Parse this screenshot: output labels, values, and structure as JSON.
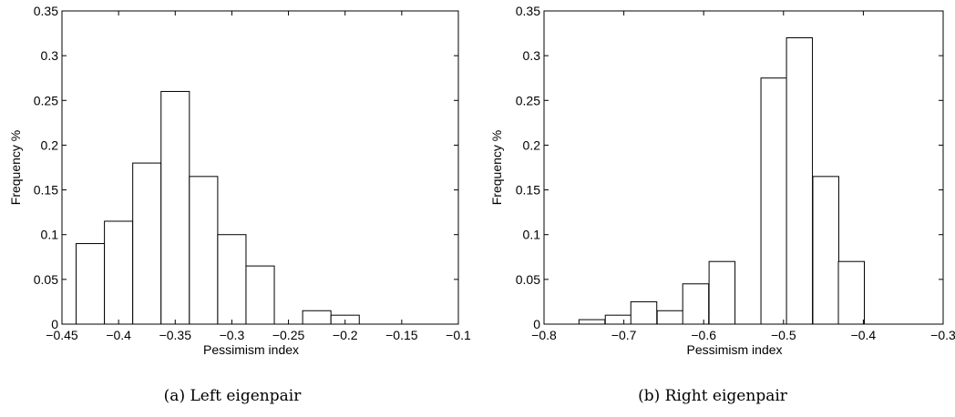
{
  "chart_data": [
    {
      "type": "bar",
      "caption": "(a) Left eigenpair",
      "xlabel": "Pessimism index",
      "ylabel": "Frequency %",
      "xlim": [
        -0.45,
        -0.1
      ],
      "ylim": [
        0,
        0.35
      ],
      "xticks": [
        "−0.45",
        "−0.4",
        "−0.35",
        "−0.3",
        "−0.25",
        "−0.2",
        "−0.15",
        "−0.1"
      ],
      "yticks": [
        "0",
        "0.05",
        "0.1",
        "0.15",
        "0.2",
        "0.25",
        "0.3",
        "0.35"
      ],
      "bin_width": 0.025,
      "bins": [
        {
          "x": -0.425,
          "value": 0.09
        },
        {
          "x": -0.4,
          "value": 0.115
        },
        {
          "x": -0.375,
          "value": 0.18
        },
        {
          "x": -0.35,
          "value": 0.26
        },
        {
          "x": -0.325,
          "value": 0.165
        },
        {
          "x": -0.3,
          "value": 0.1
        },
        {
          "x": -0.275,
          "value": 0.065
        },
        {
          "x": -0.25,
          "value": 0.0
        },
        {
          "x": -0.225,
          "value": 0.015
        },
        {
          "x": -0.2,
          "value": 0.01
        }
      ]
    },
    {
      "type": "bar",
      "caption": "(b) Right eigenpair",
      "xlabel": "Pessimism index",
      "ylabel": "Frequency %",
      "xlim": [
        -0.8,
        -0.3
      ],
      "ylim": [
        0,
        0.35
      ],
      "xticks": [
        "−0.8",
        "−0.7",
        "−0.6",
        "−0.5",
        "−0.4",
        "−0.3"
      ],
      "yticks": [
        "0",
        "0.05",
        "0.1",
        "0.15",
        "0.2",
        "0.25",
        "0.3",
        "0.35"
      ],
      "bin_width": 0.0325,
      "bins": [
        {
          "x": -0.74,
          "value": 0.005
        },
        {
          "x": -0.707,
          "value": 0.01
        },
        {
          "x": -0.675,
          "value": 0.025
        },
        {
          "x": -0.642,
          "value": 0.015
        },
        {
          "x": -0.61,
          "value": 0.045
        },
        {
          "x": -0.577,
          "value": 0.07
        },
        {
          "x": -0.545,
          "value": 0.0
        },
        {
          "x": -0.512,
          "value": 0.275
        },
        {
          "x": -0.48,
          "value": 0.32
        },
        {
          "x": -0.447,
          "value": 0.165
        },
        {
          "x": -0.415,
          "value": 0.07
        }
      ]
    }
  ]
}
